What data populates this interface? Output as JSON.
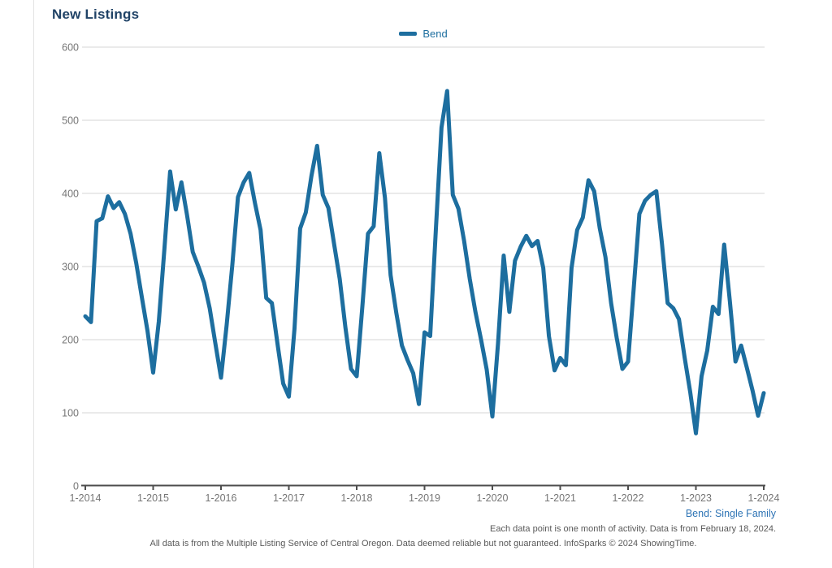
{
  "panel": {
    "title": "New Listings"
  },
  "legend": {
    "label": "Bend"
  },
  "footer": {
    "series_note": "Bend: Single Family",
    "data_note": "Each data point is one month of activity. Data is from February 18, 2024.",
    "source_note": "All data is from the Multiple Listing Service of Central Oregon. Data deemed reliable but not guaranteed. InfoSparks © 2024 ShowingTime."
  },
  "colors": {
    "line": "#1d6e9f",
    "title": "#1f4266",
    "legend_text": "#1d6e9f",
    "footer_blue": "#2e74b5",
    "grid": "#d6d6d6",
    "axis": "#4d4d4d",
    "tick_label": "#757575",
    "note_gray": "#595959"
  },
  "chart_data": {
    "type": "line",
    "title": "New Listings",
    "legend": [
      "Bend"
    ],
    "legend_position": "top-center",
    "grid": true,
    "x_tick_labels": [
      "1-2014",
      "1-2015",
      "1-2016",
      "1-2017",
      "1-2018",
      "1-2019",
      "1-2020",
      "1-2021",
      "1-2022",
      "1-2023",
      "1-2024"
    ],
    "y_ticks": [
      0,
      100,
      200,
      300,
      400,
      500,
      600
    ],
    "ylim": [
      0,
      600
    ],
    "x_start": "2014-01",
    "x_end": "2024-01",
    "interval": "monthly",
    "series": [
      {
        "name": "Bend",
        "values": [
          232,
          224,
          362,
          366,
          396,
          380,
          388,
          372,
          345,
          305,
          258,
          212,
          155,
          225,
          325,
          430,
          378,
          415,
          370,
          320,
          300,
          278,
          243,
          195,
          148,
          220,
          302,
          395,
          415,
          428,
          387,
          350,
          257,
          250,
          194,
          140,
          122,
          215,
          352,
          374,
          424,
          465,
          398,
          380,
          331,
          283,
          217,
          160,
          150,
          245,
          345,
          355,
          455,
          394,
          288,
          237,
          192,
          172,
          154,
          112,
          210,
          205,
          350,
          490,
          540,
          398,
          379,
          335,
          283,
          238,
          200,
          159,
          95,
          195,
          315,
          238,
          308,
          327,
          342,
          328,
          335,
          298,
          205,
          158,
          175,
          165,
          298,
          350,
          367,
          418,
          403,
          352,
          313,
          250,
          202,
          160,
          170,
          270,
          372,
          390,
          398,
          403,
          331,
          250,
          243,
          228,
          176,
          128,
          72,
          150,
          185,
          245,
          235,
          330,
          253,
          170,
          192,
          162,
          131,
          96,
          127
        ]
      }
    ]
  }
}
